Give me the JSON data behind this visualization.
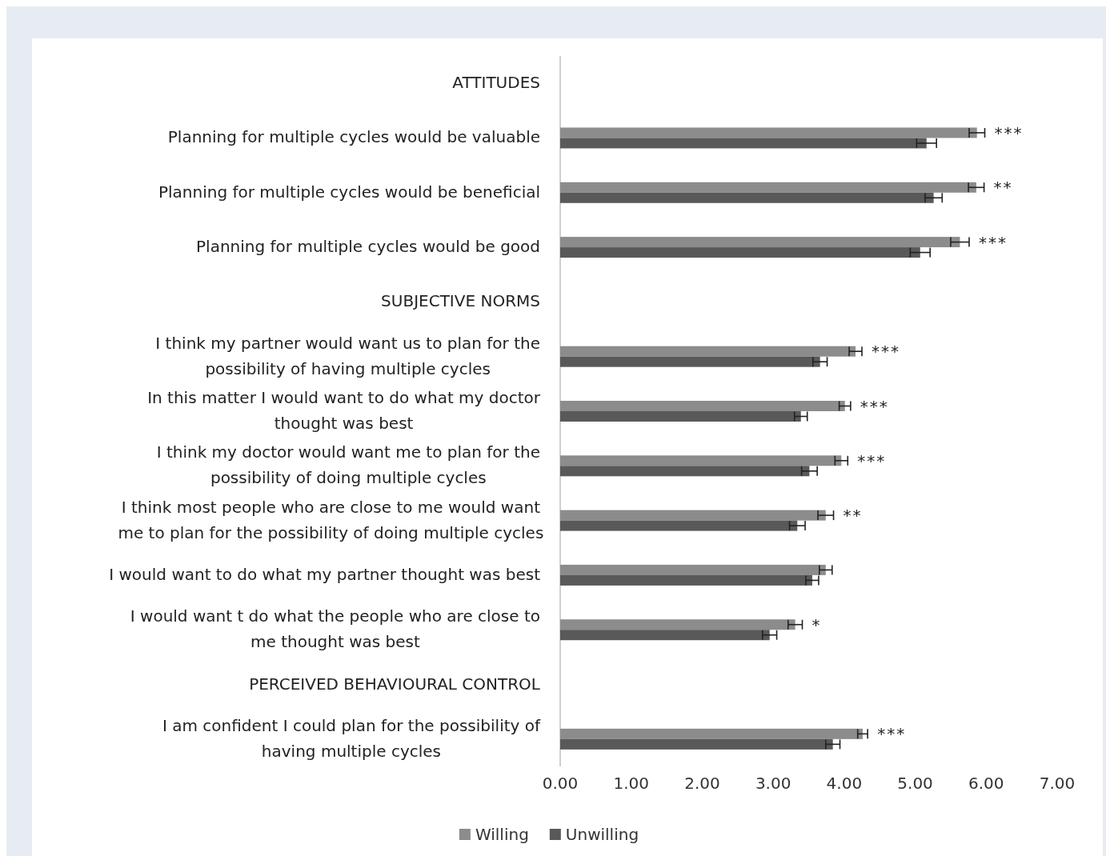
{
  "chart_data": {
    "type": "bar",
    "orientation": "horizontal",
    "categories": [
      "ATTITUDES",
      "Planning for multiple cycles would be valuable",
      "Planning for multiple cycles would be beneficial",
      "Planning for multiple cycles would be good",
      "SUBJECTIVE NORMS",
      "I think my partner would want us to plan for the possibility of having multiple cycles",
      "In this matter I would want to do what my doctor thought was best",
      "I think my doctor would want me to plan for the possibility of doing multiple cycles",
      "I think most people who are close to me would want me to plan for the possibility of doing multiple cycles",
      "I would want to do what my partner thought was best",
      "I would want t do what the people who are close to me thought was best",
      "PERCEIVED BEHAVIOURAL CONTROL",
      "I am confident I could plan for the possibility of having multiple cycles"
    ],
    "series": [
      {
        "name": "Willing",
        "color": "#8c8c8c",
        "values": [
          null,
          5.87,
          5.86,
          5.63,
          null,
          4.16,
          4.01,
          3.96,
          3.74,
          3.74,
          3.31,
          null,
          4.26
        ],
        "errors": [
          null,
          0.11,
          0.11,
          0.13,
          null,
          0.09,
          0.08,
          0.09,
          0.11,
          0.09,
          0.1,
          null,
          0.07
        ]
      },
      {
        "name": "Unwilling",
        "color": "#595959",
        "values": [
          null,
          5.16,
          5.26,
          5.07,
          null,
          3.66,
          3.39,
          3.51,
          3.34,
          3.55,
          2.95,
          null,
          3.84
        ],
        "errors": [
          null,
          0.14,
          0.12,
          0.14,
          null,
          0.1,
          0.09,
          0.11,
          0.11,
          0.09,
          0.1,
          null,
          0.1
        ]
      }
    ],
    "xlim": [
      0,
      7
    ],
    "xticks": [
      {
        "value": 0,
        "label": "0.00"
      },
      {
        "value": 1,
        "label": "1.00"
      },
      {
        "value": 2,
        "label": "2.00"
      },
      {
        "value": 3,
        "label": "3.00"
      },
      {
        "value": 4,
        "label": "4.00"
      },
      {
        "value": 5,
        "label": "5.00"
      },
      {
        "value": 6,
        "label": "6.00"
      },
      {
        "value": 7,
        "label": "7.00"
      }
    ],
    "grid": false,
    "legend": "bottom",
    "annotations": [
      {
        "text": "***",
        "x": 5.87,
        "y": "Planning for multiple cycles would be valuable"
      },
      {
        "text": "**",
        "x": 5.86,
        "y": "Planning for multiple cycles would be beneficial"
      },
      {
        "text": "***",
        "x": 5.63,
        "y": "Planning for multiple cycles would be good"
      },
      {
        "text": "***",
        "x": 4.16,
        "y": "I think my partner would want us to plan for the possibility of having multiple cycles"
      },
      {
        "text": "***",
        "x": 4.01,
        "y": "In this matter I would want to do what my doctor thought was best"
      },
      {
        "text": "***",
        "x": 3.96,
        "y": "I think my doctor would want me to plan for the possibility of doing multiple cycles"
      },
      {
        "text": "**",
        "x": 3.74,
        "y": "I think most people who are close to me would want me to plan for the possibility of doing multiple cycles"
      },
      {
        "text": "*",
        "x": 3.31,
        "y": "I would want t do what the people who are close to me thought was best"
      },
      {
        "text": "***",
        "x": 4.26,
        "y": "I am confident I could plan for the possibility of having multiple cycles"
      }
    ]
  }
}
